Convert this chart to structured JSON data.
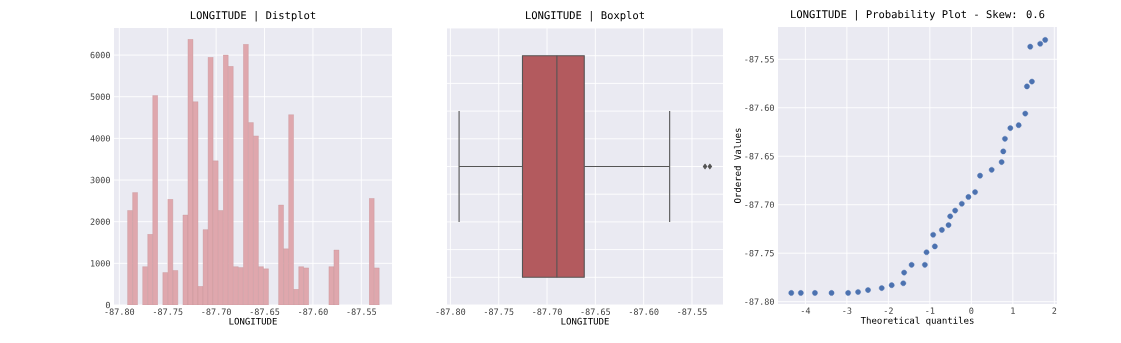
{
  "chart_data": [
    {
      "type": "histogram",
      "title": "LONGITUDE | Distplot",
      "xlabel": "LONGITUDE",
      "color": "#dfa7ad",
      "grid": true,
      "bins": [
        -87.7915,
        -87.7863,
        -87.7811,
        -87.7759,
        -87.7707,
        -87.7655,
        -87.7603,
        -87.7551,
        -87.7499,
        -87.7447,
        -87.7395,
        -87.7343,
        -87.7291,
        -87.7239,
        -87.7187,
        -87.7135,
        -87.7083,
        -87.7031,
        -87.6979,
        -87.6927,
        -87.6875,
        -87.6823,
        -87.6771,
        -87.6719,
        -87.6667,
        -87.6615,
        -87.6563,
        -87.6511,
        -87.6459,
        -87.6407,
        -87.6355,
        -87.6303,
        -87.6251,
        -87.6199,
        -87.6147,
        -87.6095,
        -87.6043,
        -87.5991,
        -87.5939,
        -87.5887,
        -87.5835,
        -87.5783,
        -87.5731,
        -87.5679,
        -87.5627,
        -87.5575,
        -87.5523,
        -87.5471,
        -87.5419,
        -87.5367,
        -87.5315
      ],
      "values": [
        2270,
        2700,
        0,
        920,
        1700,
        5030,
        0,
        780,
        2540,
        830,
        0,
        2160,
        6380,
        4880,
        450,
        1810,
        5950,
        3460,
        2270,
        6000,
        5730,
        920,
        900,
        6260,
        4380,
        4060,
        920,
        870,
        0,
        0,
        2400,
        1350,
        4570,
        380,
        920,
        890,
        0,
        0,
        0,
        0,
        920,
        1320,
        0,
        0,
        0,
        0,
        0,
        0,
        2560,
        890
      ],
      "xlim": [
        -87.8055,
        -87.5183
      ],
      "ylim": [
        0,
        6650
      ],
      "xticks": [
        {
          "value": -87.8,
          "label": "-87.80"
        },
        {
          "value": -87.75,
          "label": "-87.75"
        },
        {
          "value": -87.7,
          "label": "-87.70"
        },
        {
          "value": -87.65,
          "label": "-87.65"
        },
        {
          "value": -87.6,
          "label": "-87.60"
        },
        {
          "value": -87.55,
          "label": "-87.55"
        }
      ],
      "yticks": [
        0,
        1000,
        2000,
        3000,
        4000,
        5000,
        6000
      ]
    },
    {
      "type": "box",
      "title": "LONGITUDE | Boxplot",
      "xlabel": "LONGITUDE",
      "orientation": "horizontal",
      "color": "#b35a5e",
      "grid": true,
      "marker": "diamond",
      "categories": [
        null
      ],
      "boxes": [
        {
          "low": -87.791,
          "q1": -87.7254,
          "median": -87.6898,
          "q3": -87.6615,
          "high": -87.5731,
          "outliers": [
            -87.5365,
            -87.5315
          ]
        }
      ],
      "xlim": [
        -87.8035,
        -87.5179
      ],
      "xticks": [
        {
          "value": -87.8,
          "label": "-87.80"
        },
        {
          "value": -87.75,
          "label": "-87.75"
        },
        {
          "value": -87.7,
          "label": "-87.70"
        },
        {
          "value": -87.65,
          "label": "-87.65"
        },
        {
          "value": -87.6,
          "label": "-87.60"
        },
        {
          "value": -87.55,
          "label": "-87.55"
        }
      ]
    },
    {
      "type": "scatter",
      "title": "LONGITUDE | Probability Plot - Skew: 0.6",
      "xlabel": "Theoretical quantiles",
      "ylabel": "Ordered Values",
      "color": "#4c72b0",
      "marker": "circle",
      "grid": true,
      "x": [
        -4.34,
        -4.11,
        -3.77,
        -3.37,
        -2.97,
        -2.73,
        -2.49,
        -2.16,
        -1.92,
        -1.64,
        -1.62,
        -1.44,
        -1.12,
        -1.08,
        -0.88,
        -0.92,
        -0.71,
        -0.55,
        -0.51,
        -0.39,
        -0.23,
        -0.07,
        0.09,
        0.21,
        0.49,
        0.73,
        0.77,
        0.81,
        0.94,
        1.14,
        1.3,
        1.34,
        1.46,
        1.42,
        1.66,
        1.78
      ],
      "values": [
        -87.791,
        -87.791,
        -87.791,
        -87.791,
        -87.791,
        -87.79,
        -87.788,
        -87.786,
        -87.783,
        -87.781,
        -87.77,
        -87.762,
        -87.762,
        -87.749,
        -87.743,
        -87.731,
        -87.726,
        -87.721,
        -87.712,
        -87.706,
        -87.699,
        -87.692,
        -87.687,
        -87.67,
        -87.664,
        -87.656,
        -87.645,
        -87.632,
        -87.621,
        -87.618,
        -87.606,
        -87.578,
        -87.573,
        -87.537,
        -87.534,
        -87.53
      ],
      "xlim": [
        -4.66,
        2.065
      ],
      "ylim": [
        -87.8024,
        -87.5167
      ],
      "xticks": [
        -4,
        -3,
        -2,
        -1,
        0,
        1,
        2
      ],
      "yticks": [
        {
          "value": -87.8,
          "label": "-87.80"
        },
        {
          "value": -87.75,
          "label": "-87.75"
        },
        {
          "value": -87.7,
          "label": "-87.70"
        },
        {
          "value": -87.65,
          "label": "-87.65"
        },
        {
          "value": -87.6,
          "label": "-87.60"
        },
        {
          "value": -87.55,
          "label": "-87.55"
        }
      ]
    }
  ]
}
